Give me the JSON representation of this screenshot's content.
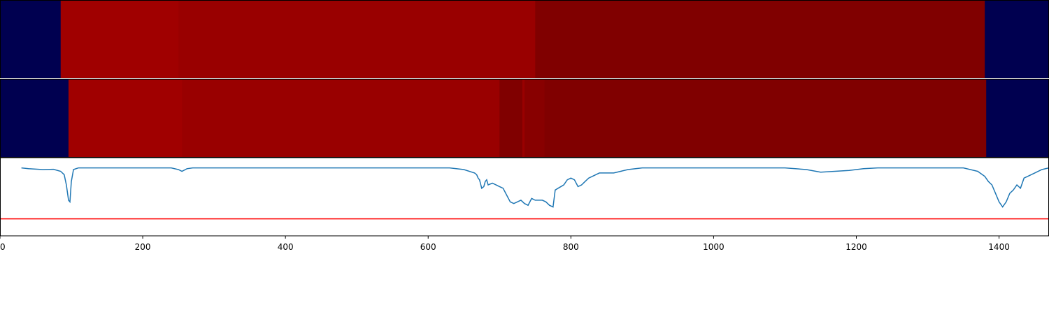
{
  "chart_data": [
    {
      "type": "heatmap",
      "segments": [
        {
          "x0": 0,
          "x1": 85,
          "color": "#000050"
        },
        {
          "x0": 85,
          "x1": 250,
          "color": "#a00000"
        },
        {
          "x0": 250,
          "x1": 750,
          "color": "#990000"
        },
        {
          "x0": 750,
          "x1": 1380,
          "color": "#800000"
        },
        {
          "x0": 1380,
          "x1": 1470,
          "color": "#000050"
        }
      ]
    },
    {
      "type": "heatmap",
      "segments": [
        {
          "x0": 0,
          "x1": 96,
          "color": "#000050"
        },
        {
          "x0": 96,
          "x1": 255,
          "color": "#a00000"
        },
        {
          "x0": 255,
          "x1": 700,
          "color": "#990000"
        },
        {
          "x0": 700,
          "x1": 732,
          "color": "#800000"
        },
        {
          "x0": 732,
          "x1": 735,
          "color": "#990000"
        },
        {
          "x0": 735,
          "x1": 763,
          "color": "#880000"
        },
        {
          "x0": 763,
          "x1": 1382,
          "color": "#800000"
        },
        {
          "x0": 1382,
          "x1": 1470,
          "color": "#000050"
        }
      ]
    },
    {
      "type": "line",
      "xlim": [
        0,
        1470
      ],
      "ylim": [
        -0.4,
        0.06
      ],
      "series": [
        {
          "color": "#1f77b4",
          "points": [
            [
              30,
              0
            ],
            [
              40,
              -0.005
            ],
            [
              60,
              -0.01
            ],
            [
              75,
              -0.008
            ],
            [
              85,
              -0.02
            ],
            [
              90,
              -0.04
            ],
            [
              93,
              -0.1
            ],
            [
              96,
              -0.19
            ],
            [
              98,
              -0.2
            ],
            [
              100,
              -0.08
            ],
            [
              103,
              -0.01
            ],
            [
              110,
              0
            ],
            [
              240,
              0
            ],
            [
              250,
              -0.01
            ],
            [
              255,
              -0.02
            ],
            [
              262,
              -0.005
            ],
            [
              270,
              0
            ],
            [
              630,
              0
            ],
            [
              650,
              -0.01
            ],
            [
              665,
              -0.03
            ],
            [
              668,
              -0.04
            ],
            [
              670,
              -0.06
            ],
            [
              672,
              -0.07
            ],
            [
              675,
              -0.12
            ],
            [
              678,
              -0.11
            ],
            [
              680,
              -0.08
            ],
            [
              682,
              -0.07
            ],
            [
              684,
              -0.1
            ],
            [
              690,
              -0.09
            ],
            [
              700,
              -0.11
            ],
            [
              705,
              -0.12
            ],
            [
              710,
              -0.16
            ],
            [
              715,
              -0.2
            ],
            [
              720,
              -0.21
            ],
            [
              725,
              -0.2
            ],
            [
              730,
              -0.19
            ],
            [
              735,
              -0.21
            ],
            [
              740,
              -0.22
            ],
            [
              745,
              -0.18
            ],
            [
              750,
              -0.19
            ],
            [
              760,
              -0.19
            ],
            [
              765,
              -0.2
            ],
            [
              770,
              -0.22
            ],
            [
              775,
              -0.23
            ],
            [
              778,
              -0.13
            ],
            [
              782,
              -0.12
            ],
            [
              790,
              -0.1
            ],
            [
              795,
              -0.07
            ],
            [
              800,
              -0.06
            ],
            [
              805,
              -0.07
            ],
            [
              810,
              -0.11
            ],
            [
              815,
              -0.1
            ],
            [
              820,
              -0.08
            ],
            [
              825,
              -0.06
            ],
            [
              830,
              -0.05
            ],
            [
              840,
              -0.03
            ],
            [
              860,
              -0.03
            ],
            [
              880,
              -0.01
            ],
            [
              900,
              0
            ],
            [
              1100,
              0
            ],
            [
              1130,
              -0.01
            ],
            [
              1150,
              -0.025
            ],
            [
              1170,
              -0.02
            ],
            [
              1190,
              -0.015
            ],
            [
              1210,
              -0.005
            ],
            [
              1230,
              0
            ],
            [
              1350,
              0
            ],
            [
              1370,
              -0.02
            ],
            [
              1380,
              -0.05
            ],
            [
              1385,
              -0.08
            ],
            [
              1390,
              -0.1
            ],
            [
              1395,
              -0.15
            ],
            [
              1400,
              -0.2
            ],
            [
              1405,
              -0.23
            ],
            [
              1410,
              -0.2
            ],
            [
              1415,
              -0.15
            ],
            [
              1420,
              -0.13
            ],
            [
              1425,
              -0.1
            ],
            [
              1430,
              -0.12
            ],
            [
              1435,
              -0.06
            ],
            [
              1440,
              -0.05
            ],
            [
              1450,
              -0.03
            ],
            [
              1460,
              -0.01
            ],
            [
              1470,
              0
            ]
          ]
        }
      ],
      "hline": {
        "y": -0.3,
        "color": "#ff0000"
      },
      "xticks": [
        0,
        200,
        400,
        600,
        800,
        1000,
        1200,
        1400
      ],
      "xtick_labels": [
        "0",
        "200",
        "400",
        "600",
        "800",
        "1000",
        "1200",
        "1400"
      ]
    }
  ]
}
